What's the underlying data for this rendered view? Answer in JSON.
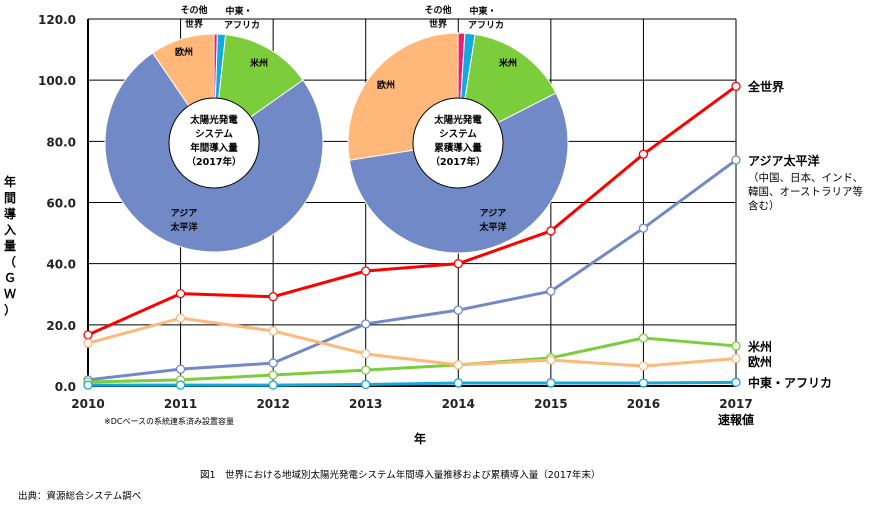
{
  "chart_data": [
    {
      "type": "line",
      "x": [
        "2010",
        "2011",
        "2012",
        "2013",
        "2014",
        "2015",
        "2016",
        "2017"
      ],
      "x_sublabel_2017": "速報値",
      "xlabel": "年",
      "ylabel": "年間導入量（ＧＷ）",
      "ylim": [
        0,
        120
      ],
      "yticks": [
        "0.0",
        "20.0",
        "40.0",
        "60.0",
        "80.0",
        "100.0",
        "120.0"
      ],
      "grid": true,
      "series": [
        {
          "name": "全世界",
          "color": "#ff0000",
          "values": [
            16.7,
            30.2,
            29.2,
            37.6,
            40.0,
            50.7,
            75.8,
            98.0
          ]
        },
        {
          "name": "アジア太平洋",
          "note": "（中国、日本、インド、韓国、オーストラリア等含む）",
          "color": "#7189c6",
          "values": [
            2.0,
            5.5,
            7.5,
            20.3,
            24.8,
            31.0,
            51.6,
            73.9
          ]
        },
        {
          "name": "米州",
          "color": "#7ccd3c",
          "values": [
            1.3,
            2.0,
            3.6,
            5.2,
            6.9,
            9.2,
            15.7,
            13.1
          ]
        },
        {
          "name": "欧州",
          "color": "#ffb879",
          "values": [
            14.0,
            22.2,
            18.0,
            10.5,
            6.9,
            8.5,
            6.5,
            9.0
          ]
        },
        {
          "name": "中東・アフリカ",
          "color": "#12a9dd",
          "values": [
            0.3,
            0.3,
            0.3,
            0.5,
            1.0,
            1.0,
            1.0,
            1.2
          ]
        }
      ],
      "footnote": "※DCベースの系統連系済み設置容量"
    },
    {
      "type": "pie",
      "center_label": [
        "太陽光発電",
        "システム",
        "年間導入量",
        "（2017年）"
      ],
      "slices": [
        {
          "label": "その他世界",
          "value": 0.5,
          "color": "#e8206e"
        },
        {
          "label": "中東・アフリカ",
          "value": 1.2,
          "color": "#12a9dd"
        },
        {
          "label": "米州",
          "value": 13.5,
          "color": "#7ccd3c"
        },
        {
          "label": "アジア太平洋",
          "value": 75.3,
          "color": "#7189c6"
        },
        {
          "label": "欧州",
          "value": 9.5,
          "color": "#ffb879"
        }
      ]
    },
    {
      "type": "pie",
      "center_label": [
        "太陽光発電",
        "システム",
        "累積導入量",
        "（2017年）"
      ],
      "slices": [
        {
          "label": "その他世界",
          "value": 1.0,
          "color": "#e8206e"
        },
        {
          "label": "中東・アフリカ",
          "value": 1.5,
          "color": "#12a9dd"
        },
        {
          "label": "米州",
          "value": 15.0,
          "color": "#7ccd3c"
        },
        {
          "label": "アジア太平洋",
          "value": 55.0,
          "color": "#7189c6"
        },
        {
          "label": "欧州",
          "value": 27.5,
          "color": "#ffb879"
        }
      ]
    }
  ],
  "pie_labels": {
    "other1": "その他",
    "other2": "世界",
    "mea1": "中東・",
    "mea2": "アフリカ",
    "americas": "米州",
    "europe": "欧州",
    "asia1": "アジア",
    "asia2": "太平洋"
  },
  "series_note_lines": [
    "（中国、日本、インド、",
    "韓国、オーストラリア等",
    "含む）"
  ],
  "caption": "図1　世界における地域別太陽光発電システム年間導入量推移および累積導入量（2017年末）",
  "source": "出典：資源総合システム調べ"
}
